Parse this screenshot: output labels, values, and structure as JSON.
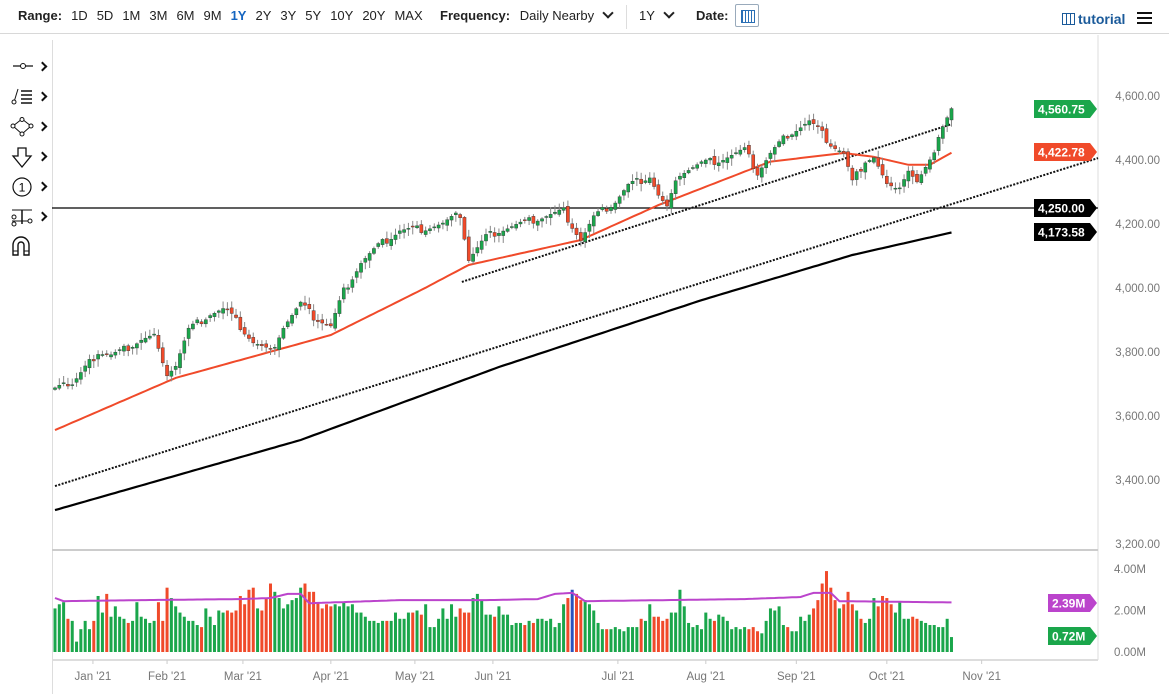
{
  "toolbar": {
    "range_label": "Range:",
    "ranges": [
      "1D",
      "5D",
      "1M",
      "3M",
      "6M",
      "9M",
      "1Y",
      "2Y",
      "3Y",
      "5Y",
      "10Y",
      "20Y",
      "MAX"
    ],
    "selected_range": "1Y",
    "frequency_label": "Frequency:",
    "frequency_value": "Daily Nearby",
    "period_value": "1Y",
    "date_label": "Date:",
    "tutorial_label": "tutorial"
  },
  "left_tools": [
    "crosshair-tool",
    "trend-line-tool",
    "shapes-tool",
    "arrow-annotation-tool",
    "number-marker-tool",
    "fibonacci-tool",
    "magnet-tool"
  ],
  "colors": {
    "up": "#1aa64b",
    "down": "#f04a2a",
    "sma50": "#f04a2a",
    "sma200": "#000000",
    "volume_avg": "#bb44cc",
    "highlight": "#2a52be"
  },
  "chart_data": {
    "type": "candlestick",
    "price_axis": {
      "ylim": [
        3200,
        4650
      ],
      "ticks": [
        "4,600.00",
        "4,400.00",
        "4,200.00",
        "4,000.00",
        "3,800.00",
        "3,600.00",
        "3,400.00",
        "3,200.00"
      ],
      "tick_values": [
        4600,
        4400,
        4200,
        4000,
        3800,
        3600,
        3400,
        3200
      ]
    },
    "volume_axis": {
      "ylim": [
        0,
        4.8
      ],
      "ticks": [
        "4.00M",
        "2.00M",
        "0.00M"
      ],
      "tick_values": [
        4,
        2,
        0
      ]
    },
    "x_axis": {
      "n_days": 209,
      "ticks": [
        {
          "label": "Jan '21",
          "index": 8.8
        },
        {
          "label": "Feb '21",
          "index": 26
        },
        {
          "label": "Mar '21",
          "index": 43.6
        },
        {
          "label": "Apr '21",
          "index": 64
        },
        {
          "label": "May '21",
          "index": 83.5
        },
        {
          "label": "Jun '21",
          "index": 101.6
        },
        {
          "label": "Jul '21",
          "index": 130.6
        },
        {
          "label": "Aug '21",
          "index": 151
        },
        {
          "label": "Sep '21",
          "index": 172
        },
        {
          "label": "Oct '21",
          "index": 193
        },
        {
          "label": "Nov '21",
          "index": 215
        }
      ],
      "max_index": 242
    },
    "close_anchors": [
      [
        0,
        3700
      ],
      [
        2,
        3710
      ],
      [
        3.5,
        3690
      ],
      [
        6,
        3730
      ],
      [
        10,
        3800
      ],
      [
        13,
        3790
      ],
      [
        15,
        3800
      ],
      [
        20,
        3840
      ],
      [
        23,
        3850
      ],
      [
        25.5,
        3730
      ],
      [
        28,
        3760
      ],
      [
        31,
        3870
      ],
      [
        36,
        3920
      ],
      [
        39.5,
        3935
      ],
      [
        43,
        3880
      ],
      [
        46,
        3830
      ],
      [
        50,
        3800
      ],
      [
        53,
        3880
      ],
      [
        57,
        3950
      ],
      [
        60,
        3910
      ],
      [
        64,
        3880
      ],
      [
        67,
        3990
      ],
      [
        71,
        4080
      ],
      [
        75,
        4130
      ],
      [
        80,
        4180
      ],
      [
        85,
        4185
      ],
      [
        90,
        4200
      ],
      [
        94,
        4230
      ],
      [
        96,
        4090
      ],
      [
        100,
        4160
      ],
      [
        103,
        4180
      ],
      [
        108,
        4200
      ],
      [
        114,
        4225
      ],
      [
        118,
        4240
      ],
      [
        122,
        4150
      ],
      [
        125,
        4220
      ],
      [
        130,
        4270
      ],
      [
        133,
        4320
      ],
      [
        138,
        4350
      ],
      [
        140,
        4290
      ],
      [
        142,
        4250
      ],
      [
        145,
        4360
      ],
      [
        150,
        4390
      ],
      [
        154,
        4400
      ],
      [
        160,
        4430
      ],
      [
        163,
        4360
      ],
      [
        166,
        4420
      ],
      [
        170,
        4480
      ],
      [
        175,
        4520
      ],
      [
        177,
        4495
      ],
      [
        180,
        4450
      ],
      [
        183,
        4420
      ],
      [
        185,
        4330
      ],
      [
        188,
        4400
      ],
      [
        190,
        4410
      ],
      [
        193,
        4320
      ],
      [
        195,
        4300
      ],
      [
        198,
        4370
      ],
      [
        200,
        4330
      ],
      [
        203,
        4390
      ],
      [
        205,
        4480
      ],
      [
        206,
        4510
      ],
      [
        208,
        4560.75
      ]
    ],
    "sma50_anchors": [
      [
        0,
        3556
      ],
      [
        28,
        3719
      ],
      [
        64,
        3853
      ],
      [
        85,
        3994
      ],
      [
        96,
        4072
      ],
      [
        122,
        4150
      ],
      [
        140,
        4259
      ],
      [
        166,
        4395
      ],
      [
        183,
        4422
      ],
      [
        190,
        4410
      ],
      [
        198,
        4385
      ],
      [
        203,
        4385
      ],
      [
        208,
        4422.78
      ]
    ],
    "sma200_anchors": [
      [
        0,
        3306
      ],
      [
        57,
        3525
      ],
      [
        103,
        3753
      ],
      [
        150,
        3962
      ],
      [
        185,
        4103
      ],
      [
        208,
        4173.58
      ]
    ],
    "trendlines": [
      {
        "from": [
          0,
          3381
        ],
        "to": [
          242,
          4406
        ]
      },
      {
        "from": [
          94.4,
          4019
        ],
        "to": [
          208,
          4512
        ]
      }
    ],
    "horizontal_line": 4250,
    "volume_millions": [
      2.1,
      2.3,
      2.4,
      1.6,
      1.5,
      0.5,
      1.1,
      1.5,
      1.1,
      1.5,
      2.7,
      1.9,
      2.8,
      1.7,
      2.2,
      1.7,
      1.6,
      1.4,
      1.5,
      2.4,
      1.7,
      1.6,
      1.4,
      1.5,
      2.4,
      1.5,
      3.1,
      2.6,
      2.2,
      1.9,
      1.7,
      1.5,
      1.5,
      1.3,
      1.2,
      2.1,
      1.7,
      1.3,
      2.0,
      1.9,
      2.0,
      1.9,
      2.0,
      2.7,
      2.3,
      3.0,
      3.1,
      2.1,
      2.0,
      2.6,
      3.3,
      2.9,
      2.6,
      2.1,
      2.3,
      2.5,
      2.6,
      3.1,
      3.3,
      2.9,
      2.9,
      2.4,
      2.1,
      2.3,
      2.2,
      2.3,
      2.2,
      2.4,
      2.2,
      2.3,
      1.9,
      1.9,
      1.7,
      1.5,
      1.5,
      1.4,
      1.5,
      1.5,
      1.5,
      1.9,
      1.6,
      1.6,
      1.9,
      1.9,
      2.0,
      1.8,
      2.3,
      1.2,
      1.2,
      1.6,
      2.1,
      1.6,
      2.3,
      1.7,
      2.1,
      1.9,
      1.9,
      2.6,
      2.8,
      2.5,
      1.8,
      1.8,
      1.7,
      2.2,
      1.8,
      1.8,
      1.3,
      1.4,
      1.4,
      1.3,
      1.5,
      1.4,
      1.6,
      1.6,
      1.5,
      1.6,
      1.2,
      1.4,
      2.3,
      2.6,
      3.0,
      2.8,
      2.5,
      2.5,
      2.3,
      2.0,
      1.4,
      1.1,
      1.1,
      1.1,
      1.2,
      1.1,
      1.0,
      1.2,
      1.2,
      1.2,
      1.6,
      1.5,
      2.3,
      1.7,
      1.7,
      1.5,
      1.6,
      1.9,
      1.9,
      3.0,
      2.2,
      1.4,
      1.2,
      1.3,
      1.1,
      1.9,
      1.6,
      1.5,
      1.8,
      1.7,
      1.5,
      1.1,
      1.2,
      1.1,
      1.2,
      1.1,
      1.2,
      1.0,
      0.9,
      1.5,
      2.1,
      2.0,
      2.2,
      1.3,
      1.2,
      1.0,
      1.0,
      1.7,
      1.5,
      1.8,
      2.1,
      2.5,
      3.3,
      3.9,
      3.1,
      2.5,
      2.1,
      2.3,
      2.9,
      2.3,
      2.0,
      1.6,
      1.4,
      1.6,
      2.6,
      2.2,
      2.7,
      2.6,
      2.3,
      1.9,
      2.4,
      1.6,
      1.6,
      1.7,
      1.6,
      1.5,
      1.4,
      1.3,
      1.3,
      1.2,
      1.2,
      1.6,
      0.72
    ],
    "highlighted_volume_index": 120,
    "volume_avg_anchors": [
      [
        0,
        2.6
      ],
      [
        2,
        2.45
      ],
      [
        20,
        2.5
      ],
      [
        43,
        2.55
      ],
      [
        50,
        2.6
      ],
      [
        54,
        2.8
      ],
      [
        57,
        2.8
      ],
      [
        59,
        2.35
      ],
      [
        80,
        2.5
      ],
      [
        100,
        2.5
      ],
      [
        112,
        2.55
      ],
      [
        116,
        2.8
      ],
      [
        120,
        2.85
      ],
      [
        123,
        2.45
      ],
      [
        160,
        2.55
      ],
      [
        173,
        2.65
      ],
      [
        176,
        2.85
      ],
      [
        180,
        2.85
      ],
      [
        182,
        2.45
      ],
      [
        208,
        2.39
      ]
    ],
    "price_tags": [
      {
        "label": "4,560.75",
        "value": 4560.75,
        "color": "#1aa64b"
      },
      {
        "label": "4,422.78",
        "value": 4422.78,
        "color": "#f04a2a"
      },
      {
        "label": "4,250.00",
        "value": 4250,
        "color": "#000000"
      },
      {
        "label": "4,173.58",
        "value": 4173.58,
        "color": "#000000"
      }
    ],
    "volume_tags": [
      {
        "label": "2.39M",
        "value": 2.39,
        "color": "#bb44cc"
      },
      {
        "label": "0.72M",
        "value": 0.72,
        "color": "#1aa64b"
      }
    ]
  }
}
